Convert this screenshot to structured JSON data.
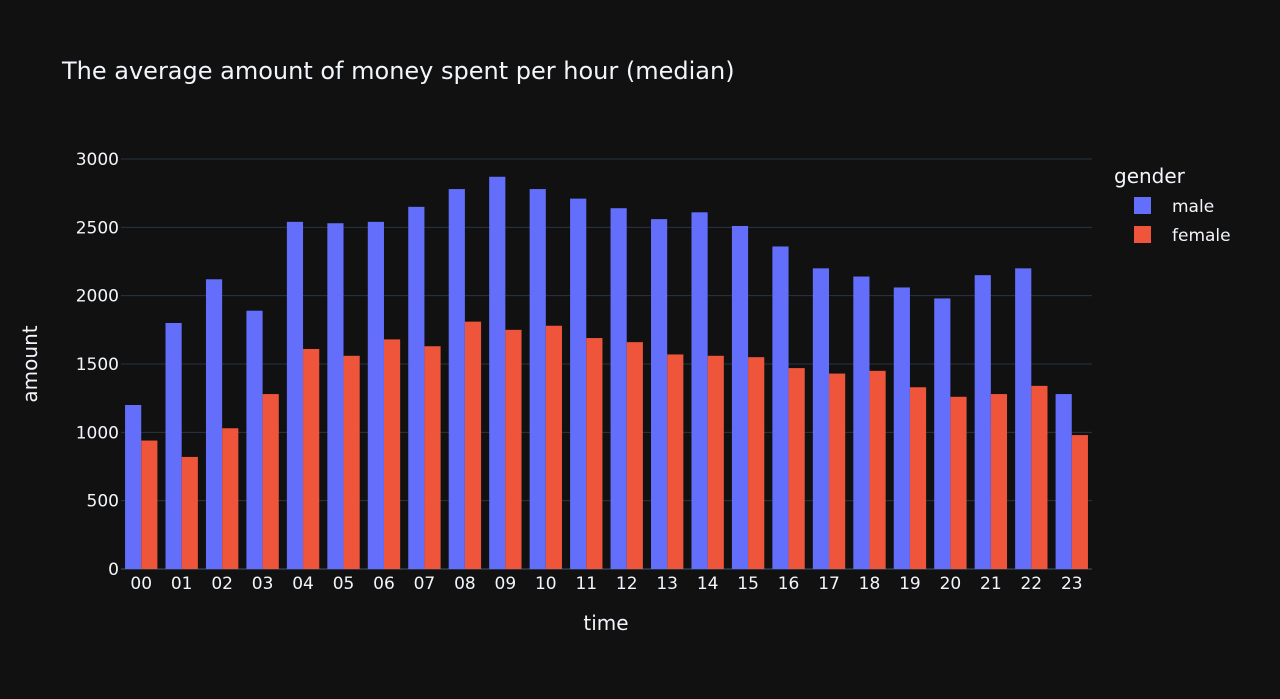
{
  "chart_data": {
    "type": "bar",
    "title": "The average amount of money spent per hour (median)",
    "xlabel": "time",
    "ylabel": "amount",
    "ylim": [
      0,
      3000
    ],
    "yticks": [
      0,
      500,
      1000,
      1500,
      2000,
      2500,
      3000
    ],
    "grid": true,
    "legend_title": "gender",
    "legend_position": "top-right",
    "categories": [
      "00",
      "01",
      "02",
      "03",
      "04",
      "05",
      "06",
      "07",
      "08",
      "09",
      "10",
      "11",
      "12",
      "13",
      "14",
      "15",
      "16",
      "17",
      "18",
      "19",
      "20",
      "21",
      "22",
      "23"
    ],
    "series": [
      {
        "name": "male",
        "color": "#636efa",
        "values": [
          1200,
          1800,
          2120,
          1890,
          2540,
          2530,
          2540,
          2650,
          2780,
          2870,
          2780,
          2710,
          2640,
          2560,
          2610,
          2510,
          2360,
          2200,
          2140,
          2060,
          1980,
          2150,
          2200,
          1280
        ]
      },
      {
        "name": "female",
        "color": "#ef553b",
        "values": [
          940,
          820,
          1030,
          1280,
          1610,
          1560,
          1680,
          1630,
          1810,
          1750,
          1780,
          1690,
          1660,
          1570,
          1560,
          1550,
          1470,
          1430,
          1450,
          1330,
          1260,
          1280,
          1340,
          980
        ]
      }
    ]
  },
  "colors": {
    "background": "#111111",
    "grid": "#283442",
    "text": "#f2f5fa"
  }
}
